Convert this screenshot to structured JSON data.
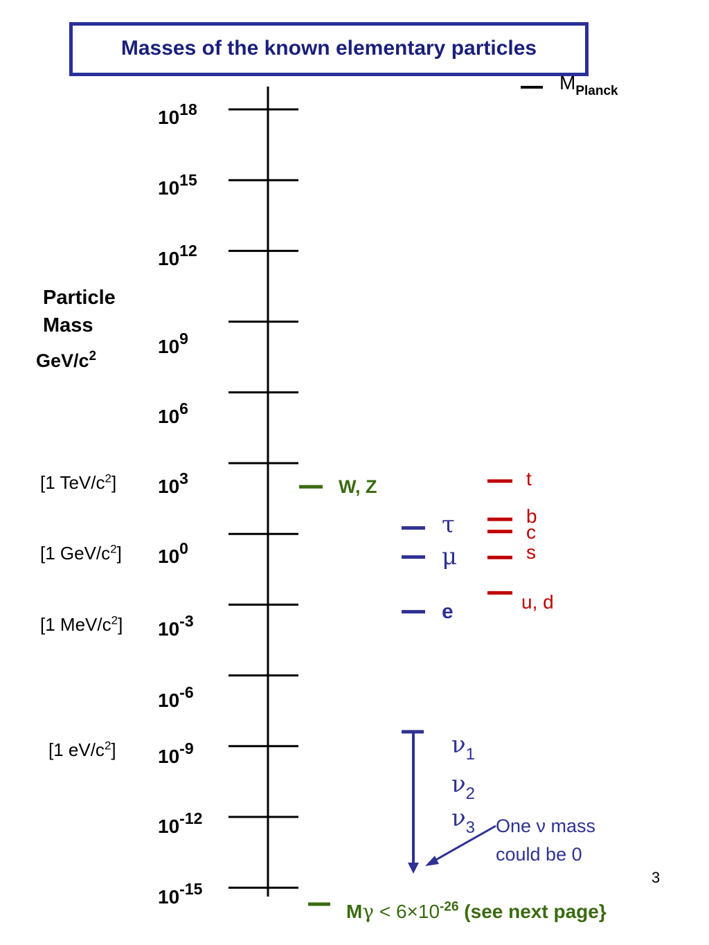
{
  "title": "Masses of the known elementary particles",
  "axis_label": {
    "line1": "Particle",
    "line2": "Mass",
    "unit_base": "GeV/c",
    "unit_exp": "2"
  },
  "ticks": [
    {
      "base": "10",
      "exp": "18"
    },
    {
      "base": "10",
      "exp": "15"
    },
    {
      "base": "10",
      "exp": "12"
    },
    {
      "base": "10",
      "exp": "9"
    },
    {
      "base": "10",
      "exp": "6"
    },
    {
      "base": "10",
      "exp": "3"
    },
    {
      "base": "10",
      "exp": "0"
    },
    {
      "base": "10",
      "exp": "-3"
    },
    {
      "base": "10",
      "exp": "-6"
    },
    {
      "base": "10",
      "exp": "-9"
    },
    {
      "base": "10",
      "exp": "-12"
    },
    {
      "base": "10",
      "exp": "-15"
    }
  ],
  "unit_markers": [
    {
      "open": "[1 TeV/c",
      "exp": "2",
      "close": "]",
      "at_exp": 3
    },
    {
      "open": "[1 GeV/c",
      "exp": "2",
      "close": "]",
      "at_exp": 0
    },
    {
      "open": "[1 MeV/c",
      "exp": "2",
      "close": "]",
      "at_exp": -3
    },
    {
      "open": "[1 eV/c",
      "exp": "2",
      "close": "]",
      "at_exp": -9
    }
  ],
  "planck": {
    "label_main": "M",
    "label_sub": "Planck",
    "color": "#000000"
  },
  "bosons": {
    "label": "W, Z",
    "color": "#3a6b10",
    "log10_mass": 2.0
  },
  "leptons": {
    "color": "#2e3192",
    "items": [
      {
        "label": "τ",
        "log10_mass": 0.25
      },
      {
        "label": "μ",
        "log10_mass": -0.98
      },
      {
        "label": "e",
        "log10_mass": -3.3
      }
    ]
  },
  "quarks": {
    "color": "#c00000",
    "items": [
      {
        "label": "t",
        "log10_mass": 2.24
      },
      {
        "label": "b",
        "log10_mass": 0.62
      },
      {
        "label": "c",
        "log10_mass": 0.1
      },
      {
        "label": "s",
        "log10_mass": -1.0
      },
      {
        "label": "u, d",
        "log10_mass": -2.5
      }
    ]
  },
  "neutrinos": {
    "color": "#2e3192",
    "labels": [
      {
        "sym": "ν",
        "sub": "1"
      },
      {
        "sym": "ν",
        "sub": "2"
      },
      {
        "sym": "ν",
        "sub": "3"
      }
    ],
    "note_line1": "One ν mass",
    "note_line2": "could be 0"
  },
  "photon": {
    "color": "#3a6b10",
    "prefix": "M",
    "sym": "γ",
    "relation": " < 6×10",
    "exp": "-26",
    "suffix": " (see next page}"
  },
  "page_number": "3"
}
